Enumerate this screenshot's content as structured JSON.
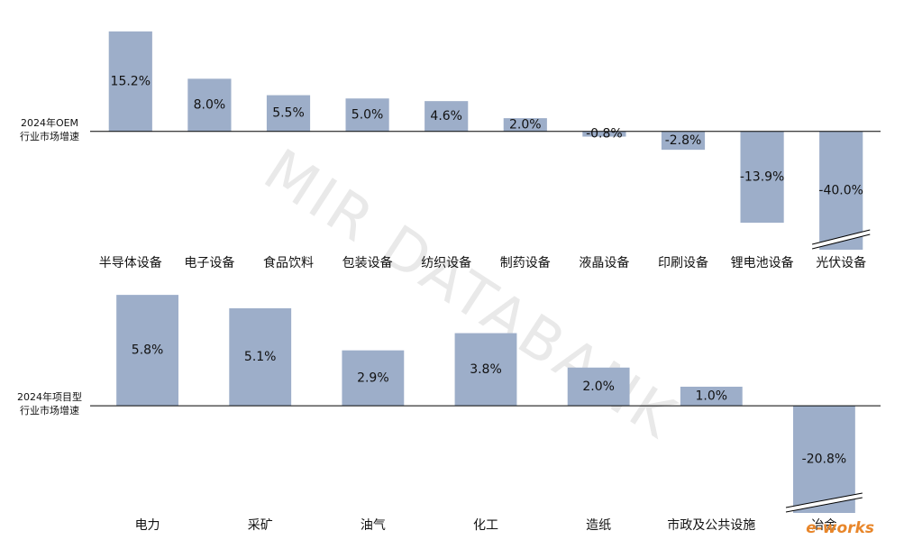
{
  "chart_data": [
    {
      "type": "bar",
      "y_label": [
        "2024年OEM",
        "行业市场增速"
      ],
      "categories": [
        "半导体设备",
        "电子设备",
        "食品饮料",
        "包装设备",
        "纺织设备",
        "制药设备",
        "液晶设备",
        "印刷设备",
        "锂电池设备",
        "光伏设备"
      ],
      "values": [
        15.2,
        8.0,
        5.5,
        5.0,
        4.6,
        2.0,
        -0.8,
        -2.8,
        -13.9,
        -40.0
      ],
      "value_labels": [
        "15.2%",
        "8.0%",
        "5.5%",
        "5.0%",
        "4.6%",
        "2.0%",
        "-0.8%",
        "-2.8%",
        "-13.9%",
        "-40.0%"
      ],
      "color": "#9daec9",
      "ylim": [
        -18,
        16
      ]
    },
    {
      "type": "bar",
      "y_label": [
        "2024年项目型",
        "行业市场增速"
      ],
      "categories": [
        "电力",
        "采矿",
        "油气",
        "化工",
        "造纸",
        "市政及公共设施",
        "冶金"
      ],
      "values": [
        5.8,
        5.1,
        2.9,
        3.8,
        2.0,
        1.0,
        -20.8
      ],
      "value_labels": [
        "5.8%",
        "5.1%",
        "2.9%",
        "3.8%",
        "2.0%",
        "1.0%",
        "-20.8%"
      ],
      "color": "#9daec9",
      "ylim": [
        -5.6,
        5.9
      ]
    }
  ],
  "watermark": "MIR DATABANK",
  "logo": "e-works"
}
